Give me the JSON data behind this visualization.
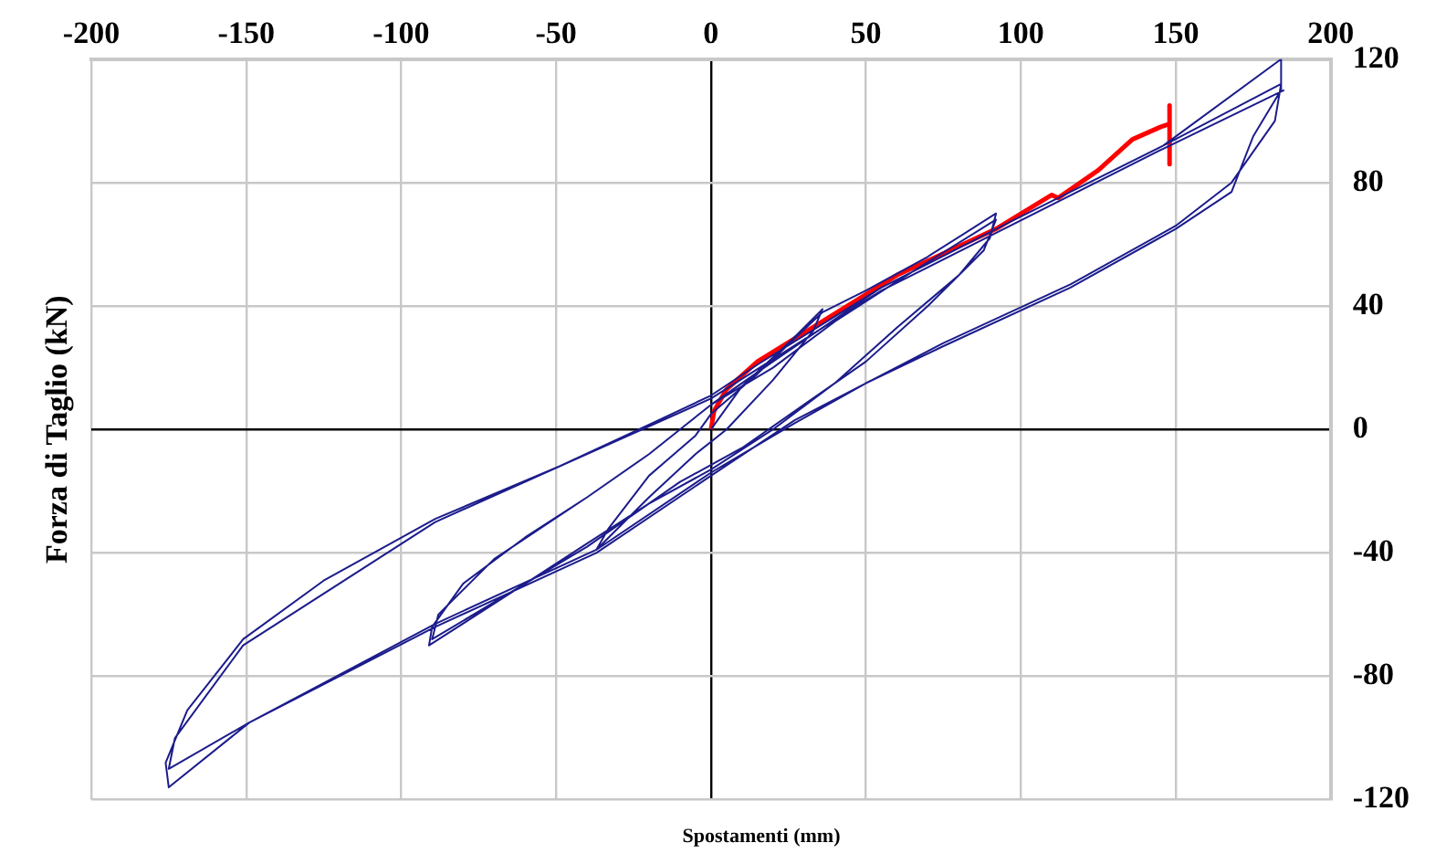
{
  "chart_data": {
    "type": "line",
    "xlabel": "Spostamenti (mm)",
    "ylabel": "Forza di Taglio (kN)",
    "xlim": [
      -200,
      200
    ],
    "xticks": [
      -200,
      -150,
      -100,
      -50,
      0,
      50,
      100,
      150,
      200
    ],
    "ylim": [
      -120,
      120
    ],
    "yticks": [
      -120,
      -80,
      -40,
      0,
      40,
      80,
      120
    ],
    "grid": true,
    "legend": false,
    "marker": "none",
    "line_style": "solid",
    "series": [
      {
        "color": "#1c1c8c",
        "x": [
          0,
          10,
          25,
          36,
          33,
          20,
          5,
          -5,
          -20,
          -37,
          -33,
          -20,
          -5,
          0,
          15,
          36,
          50,
          70,
          92,
          90,
          80,
          60,
          40,
          20,
          0,
          -20,
          -40,
          -60,
          -91,
          -90,
          -80,
          -60,
          -40,
          -20,
          0,
          20,
          40,
          60,
          92,
          88,
          70,
          50,
          30,
          10,
          -10,
          -40,
          -60,
          -90,
          -88,
          -70,
          -40,
          -20,
          0,
          20,
          55,
          96,
          146,
          184,
          184,
          175,
          168,
          150,
          116,
          75,
          50,
          27,
          0,
          -37,
          -89,
          -149,
          -175,
          -176,
          -169,
          -151,
          -125,
          -89,
          -49,
          -19,
          0,
          15,
          55,
          96,
          146,
          184,
          182,
          168,
          150,
          116,
          75,
          27,
          0,
          -37,
          -89,
          -149,
          -175,
          -173,
          -151,
          -89,
          0,
          55,
          146,
          185
        ],
        "values": [
          0,
          14,
          28,
          39,
          32,
          16,
          0,
          -8,
          -22,
          -39,
          -32,
          -15,
          -2,
          5,
          18,
          38,
          45,
          56,
          70,
          62,
          50,
          33,
          15,
          0,
          -13,
          -24,
          -37,
          -50,
          -70,
          -64,
          -50,
          -35,
          -22,
          -8,
          8,
          20,
          35,
          48,
          68,
          58,
          40,
          22,
          8,
          -6,
          -17,
          -38,
          -50,
          -68,
          -60,
          -42,
          -22,
          -8,
          8,
          22,
          46,
          67,
          92,
          120,
          110,
          95,
          77,
          65,
          46,
          27,
          15,
          2,
          -14,
          -39,
          -63,
          -95,
          -116,
          -108,
          -91,
          -68,
          -49,
          -29,
          -12,
          2,
          11,
          21,
          46,
          67,
          92,
          112,
          100,
          80,
          66,
          47,
          28,
          3,
          -15,
          -40,
          -64,
          -95,
          -110,
          -100,
          -70,
          -30,
          10,
          45,
          91,
          110
        ]
      },
      {
        "color": "#ff0000",
        "x": [
          0,
          1,
          5,
          15,
          36,
          60,
          92,
          110,
          112,
          125,
          136,
          145,
          148,
          148,
          148
        ],
        "values": [
          0,
          6,
          13,
          22,
          35,
          50,
          65,
          76,
          75,
          84,
          94,
          98,
          99,
          105,
          86
        ]
      }
    ]
  }
}
